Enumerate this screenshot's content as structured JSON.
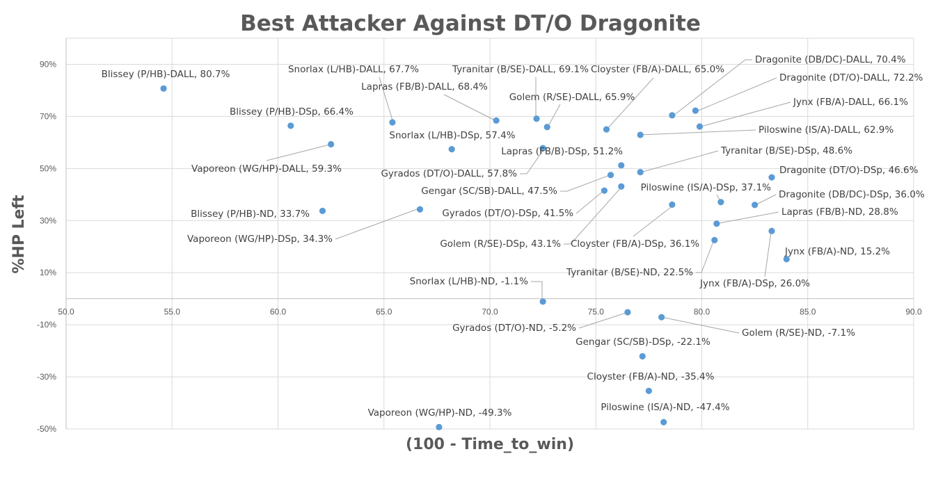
{
  "chart_data": {
    "type": "scatter",
    "title": "Best Attacker Against DT/O Dragonite",
    "xlabel": "(100 - Time_to_win)",
    "ylabel": "%HP Left",
    "xlim": [
      50,
      90
    ],
    "ylim": [
      -50,
      100
    ],
    "x_ticks": [
      "50.0",
      "55.0",
      "60.0",
      "65.0",
      "70.0",
      "75.0",
      "80.0",
      "85.0",
      "90.0"
    ],
    "y_ticks": [
      "90%",
      "70%",
      "50%",
      "30%",
      "10%",
      "-10%",
      "-30%",
      "-50%"
    ],
    "grid": true,
    "color": "#5b9bd5",
    "points": [
      {
        "label": "Blissey (P/HB)-DALL, 80.7%",
        "x": 54.6,
        "y": 80.7
      },
      {
        "label": "Blissey (P/HB)-DSp, 66.4%",
        "x": 60.6,
        "y": 66.4
      },
      {
        "label": "Blissey (P/HB)-ND, 33.7%",
        "x": 62.1,
        "y": 33.7
      },
      {
        "label": "Vaporeon (WG/HP)-DALL, 59.3%",
        "x": 62.5,
        "y": 59.3
      },
      {
        "label": "Vaporeon (WG/HP)-DSp, 34.3%",
        "x": 66.7,
        "y": 34.3
      },
      {
        "label": "Vaporeon (WG/HP)-ND, -49.3%",
        "x": 67.6,
        "y": -49.3
      },
      {
        "label": "Snorlax (L/HB)-DALL, 67.7%",
        "x": 65.4,
        "y": 67.7
      },
      {
        "label": "Snorlax (L/HB)-DSp, 57.4%",
        "x": 68.2,
        "y": 57.4
      },
      {
        "label": "Snorlax (L/HB)-ND, -1.1%",
        "x": 72.5,
        "y": -1.1
      },
      {
        "label": "Lapras (FB/B)-DALL, 68.4%",
        "x": 70.3,
        "y": 68.4
      },
      {
        "label": "Lapras (FB/B)-DSp, 51.2%",
        "x": 76.2,
        "y": 51.2
      },
      {
        "label": "Lapras (FB/B)-ND, 28.8%",
        "x": 80.7,
        "y": 28.8
      },
      {
        "label": "Tyranitar (B/SE)-DALL, 69.1%",
        "x": 72.2,
        "y": 69.1
      },
      {
        "label": "Tyranitar (B/SE)-DSp, 48.6%",
        "x": 77.1,
        "y": 48.6
      },
      {
        "label": "Tyranitar (B/SE)-ND, 22.5%",
        "x": 80.6,
        "y": 22.5
      },
      {
        "label": "Golem (R/SE)-DALL, 65.9%",
        "x": 72.7,
        "y": 65.9
      },
      {
        "label": "Golem (R/SE)-DSp, 43.1%",
        "x": 76.2,
        "y": 43.1
      },
      {
        "label": "Golem (R/SE)-ND, -7.1%",
        "x": 78.1,
        "y": -7.1
      },
      {
        "label": "Cloyster (FB/A)-DALL, 65.0%",
        "x": 75.5,
        "y": 65.0
      },
      {
        "label": "Cloyster (FB/A)-DSp, 36.1%",
        "x": 78.6,
        "y": 36.1
      },
      {
        "label": "Cloyster (FB/A)-ND, -35.4%",
        "x": 77.5,
        "y": -35.4
      },
      {
        "label": "Gyrados (DT/O)-DALL, 57.8%",
        "x": 72.5,
        "y": 57.8
      },
      {
        "label": "Gyrados (DT/O)-DSp, 41.5%",
        "x": 75.4,
        "y": 41.5
      },
      {
        "label": "Gyrados (DT/O)-ND, -5.2%",
        "x": 76.5,
        "y": -5.2
      },
      {
        "label": "Gengar (SC/SB)-DALL, 47.5%",
        "x": 75.7,
        "y": 47.5
      },
      {
        "label": "Gengar (SC/SB)-DSp, -22.1%",
        "x": 77.2,
        "y": -22.1
      },
      {
        "label": "Dragonite (DB/DC)-DALL, 70.4%",
        "x": 78.6,
        "y": 70.4
      },
      {
        "label": "Dragonite (DB/DC)-DSp, 36.0%",
        "x": 82.5,
        "y": 36.0
      },
      {
        "label": "Dragonite (DT/O)-DALL, 72.2%",
        "x": 79.7,
        "y": 72.2
      },
      {
        "label": "Dragonite (DT/O)-DSp, 46.6%",
        "x": 83.3,
        "y": 46.6
      },
      {
        "label": "Jynx (FB/A)-DALL, 66.1%",
        "x": 79.9,
        "y": 66.1
      },
      {
        "label": "Jynx (FB/A)-DSp, 26.0%",
        "x": 83.3,
        "y": 26.0
      },
      {
        "label": "Jynx (FB/A)-ND, 15.2%",
        "x": 84.0,
        "y": 15.2
      },
      {
        "label": "Piloswine (IS/A)-DALL, 62.9%",
        "x": 77.1,
        "y": 62.9
      },
      {
        "label": "Piloswine (IS/A)-DSp, 37.1%",
        "x": 80.9,
        "y": 37.1
      },
      {
        "label": "Piloswine (IS/A)-ND, -47.4%",
        "x": 78.2,
        "y": -47.4
      }
    ]
  }
}
